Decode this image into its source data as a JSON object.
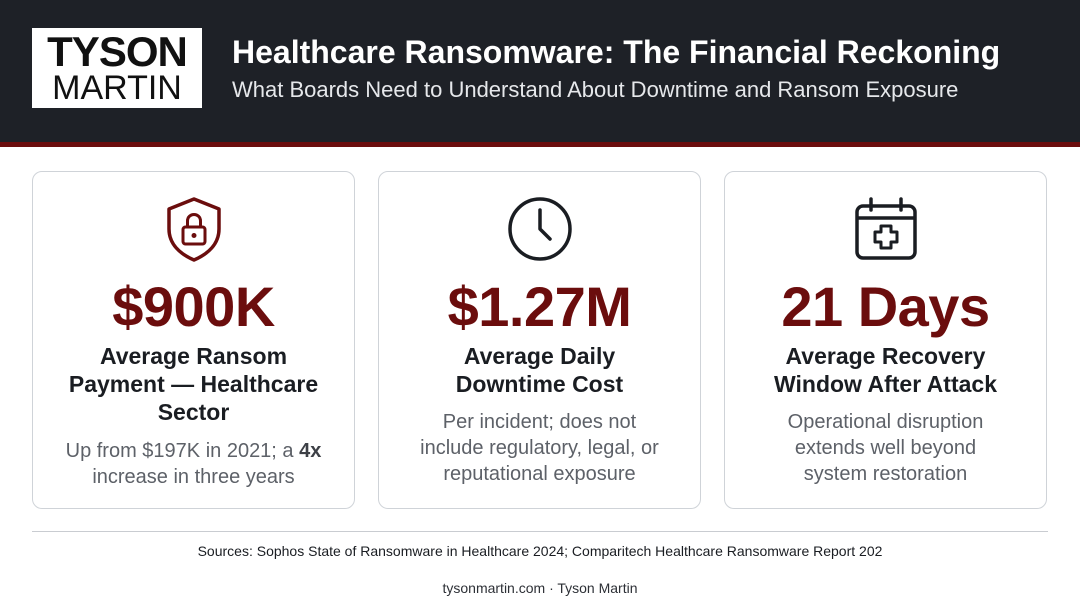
{
  "header": {
    "logo_line1": "TYSON",
    "logo_line2": "MARTIN",
    "title": "Healthcare Ransomware: The Financial Reckoning",
    "subtitle": "What Boards Need to Understand About Downtime and Ransom Exposure"
  },
  "cards": [
    {
      "icon": "shield-lock-icon",
      "stat": "$900K",
      "label_lines": [
        "Average Ransom",
        "Payment — Healthcare",
        "Sector"
      ],
      "desc_before": "Up from $197K in 2021; a ",
      "desc_bold": "4x",
      "desc_after": " increase in three years"
    },
    {
      "icon": "clock-icon",
      "stat": "$1.27M",
      "label_lines": [
        "Average Daily",
        "Downtime Cost"
      ],
      "desc_lines": [
        "Per incident; does not",
        "include regulatory, legal, or",
        "reputational exposure"
      ]
    },
    {
      "icon": "calendar-medical-icon",
      "stat": "21 Days",
      "label_lines": [
        "Average Recovery",
        "Window After Attack"
      ],
      "desc_lines": [
        "Operational disruption",
        "extends well beyond",
        "system restoration"
      ]
    }
  ],
  "footer": {
    "sources": "Sources: Sophos State of Ransomware in Healthcare 2024; Comparitech Healthcare Ransomware Report 202",
    "credit": "tysonmartin.com · Tyson Martin"
  },
  "colors": {
    "header_bg": "#1e2127",
    "accent": "#6b0d0d",
    "text_dark": "#1a1d22",
    "text_muted": "#5d6168",
    "card_border": "#cfd3d8"
  }
}
